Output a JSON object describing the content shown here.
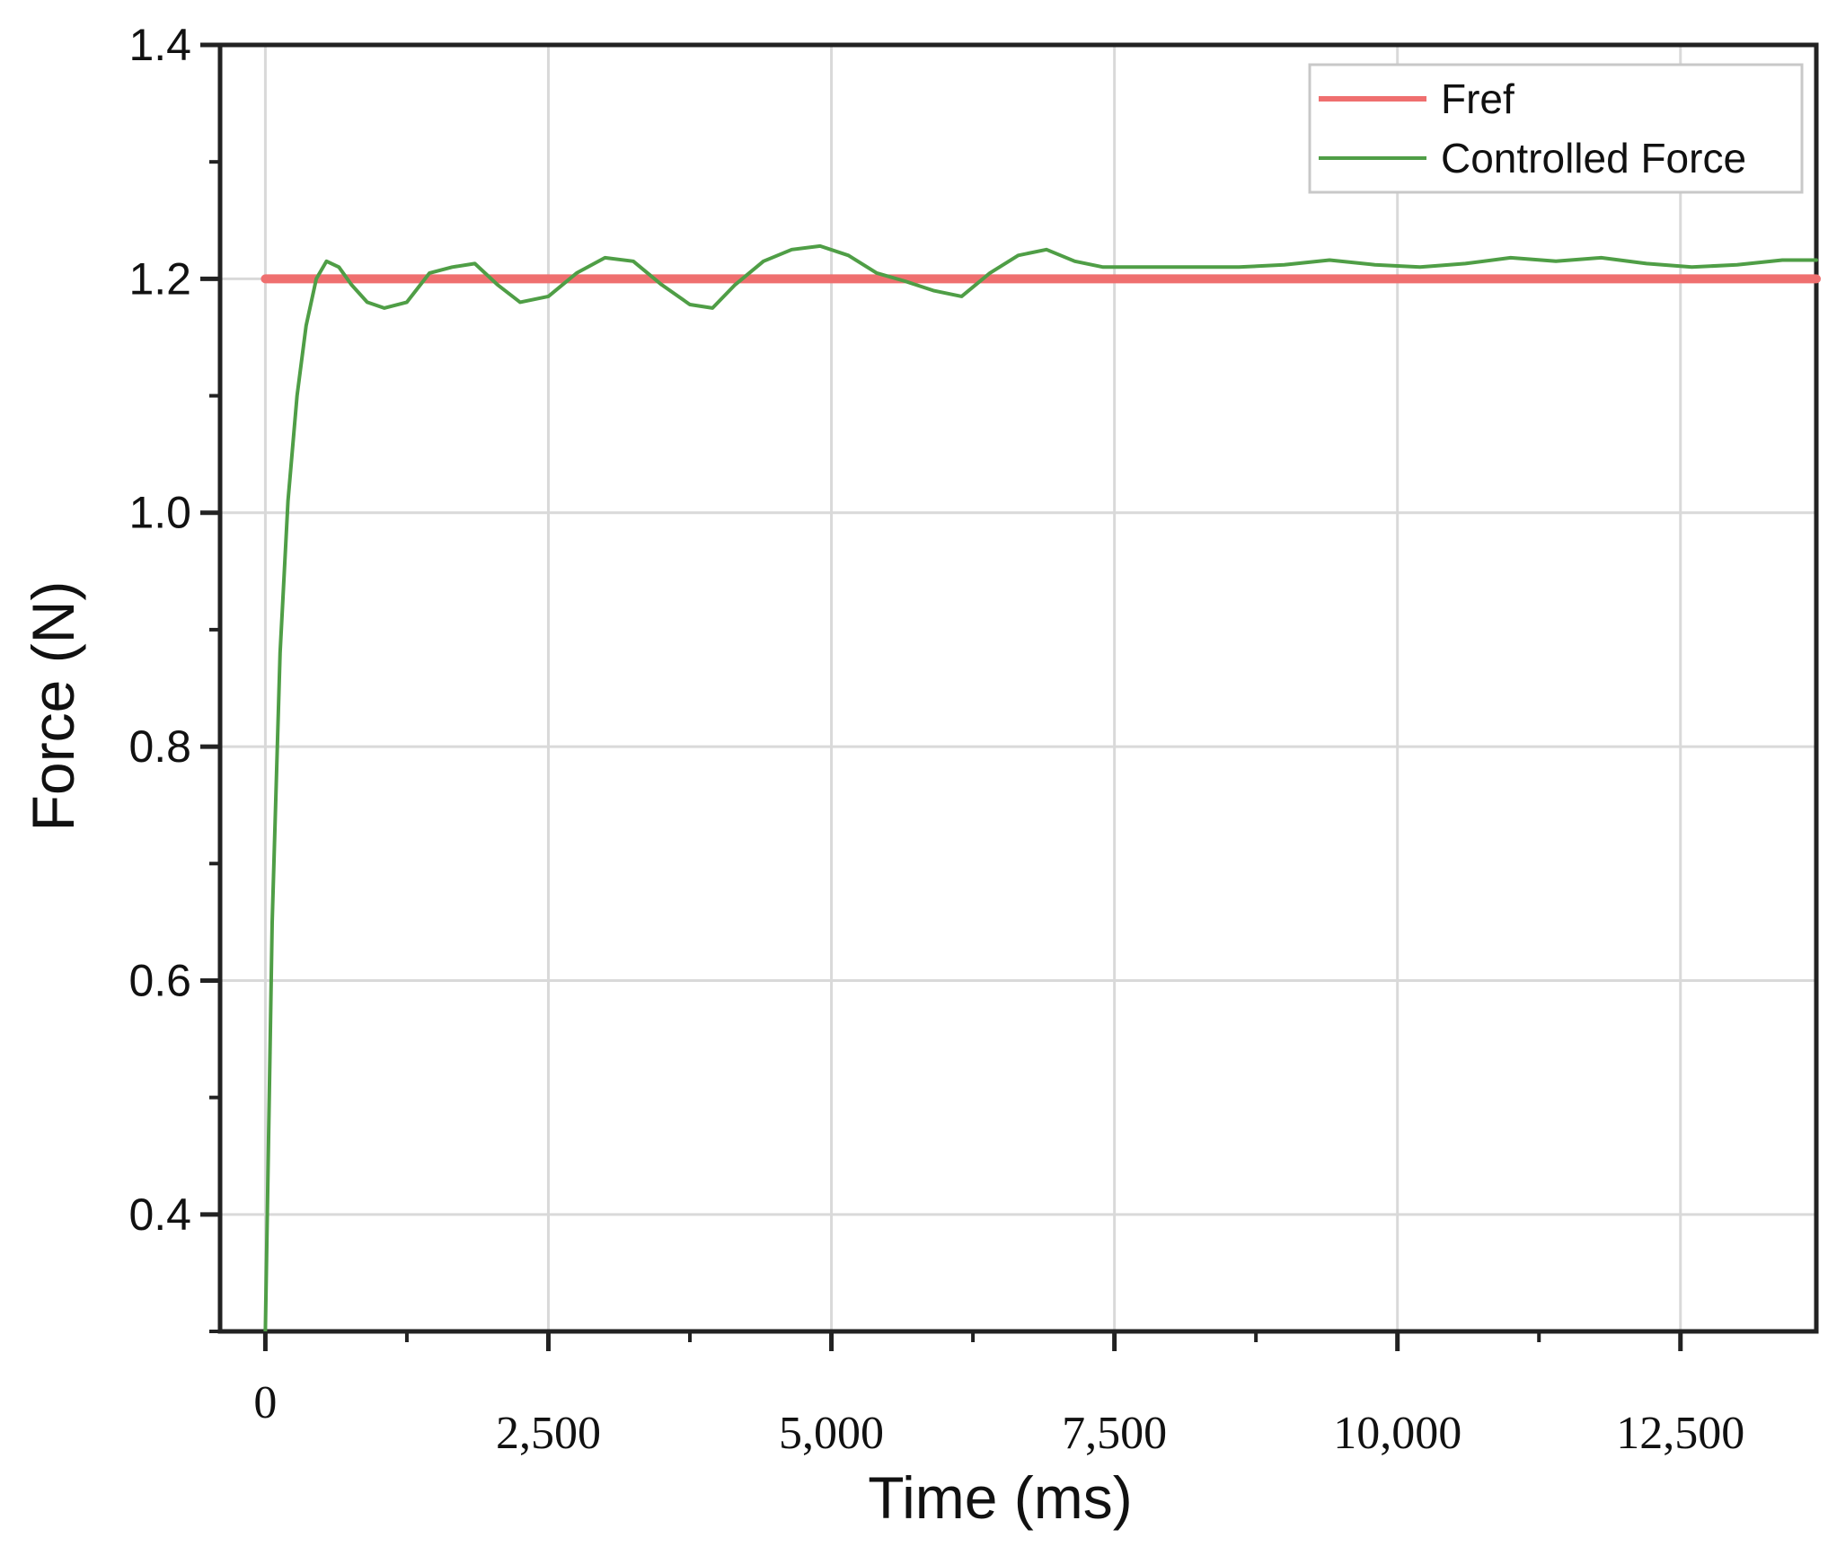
{
  "chart_data": {
    "type": "line",
    "xlabel": "Time (ms)",
    "ylabel": "Force (N)",
    "xlim": [
      -400,
      13700
    ],
    "ylim": [
      0.3,
      1.4
    ],
    "xticks": [
      0,
      2500,
      5000,
      7500,
      10000,
      12500
    ],
    "xtick_labels": [
      "0",
      "2,500",
      "5,000",
      "7,500",
      "10,000",
      "12,500"
    ],
    "yticks": [
      0.4,
      0.6,
      0.8,
      1.0,
      1.2,
      1.4
    ],
    "ytick_labels": [
      "0.4",
      "0.6",
      "0.8",
      "1.0",
      "1.2",
      "1.4"
    ],
    "grid": true,
    "legend_position": "top-right",
    "legend": [
      {
        "label": "Fref",
        "color": "#ef6f6f"
      },
      {
        "label": "Controlled Force",
        "color": "#4f9e46"
      }
    ],
    "series": [
      {
        "name": "Fref",
        "color": "#ef6f6f",
        "x": [
          0,
          13700
        ],
        "y": [
          1.2,
          1.2
        ]
      },
      {
        "name": "Controlled Force",
        "color": "#4f9e46",
        "x": [
          0,
          60,
          130,
          200,
          280,
          360,
          450,
          540,
          650,
          760,
          900,
          1050,
          1250,
          1450,
          1650,
          1850,
          2050,
          2250,
          2500,
          2750,
          3000,
          3250,
          3500,
          3750,
          3950,
          4150,
          4400,
          4650,
          4900,
          5150,
          5400,
          5650,
          5900,
          6150,
          6400,
          6650,
          6900,
          7150,
          7400,
          7800,
          8200,
          8600,
          9000,
          9400,
          9800,
          10200,
          10600,
          11000,
          11400,
          11800,
          12200,
          12600,
          13000,
          13400,
          13700
        ],
        "y": [
          0.3,
          0.65,
          0.88,
          1.01,
          1.1,
          1.16,
          1.2,
          1.215,
          1.21,
          1.195,
          1.18,
          1.175,
          1.18,
          1.205,
          1.21,
          1.213,
          1.195,
          1.18,
          1.185,
          1.205,
          1.218,
          1.215,
          1.195,
          1.178,
          1.175,
          1.195,
          1.215,
          1.225,
          1.228,
          1.22,
          1.205,
          1.198,
          1.19,
          1.185,
          1.205,
          1.22,
          1.225,
          1.215,
          1.21,
          1.21,
          1.21,
          1.21,
          1.212,
          1.216,
          1.212,
          1.21,
          1.213,
          1.218,
          1.215,
          1.218,
          1.213,
          1.21,
          1.212,
          1.216,
          1.216
        ]
      }
    ]
  }
}
